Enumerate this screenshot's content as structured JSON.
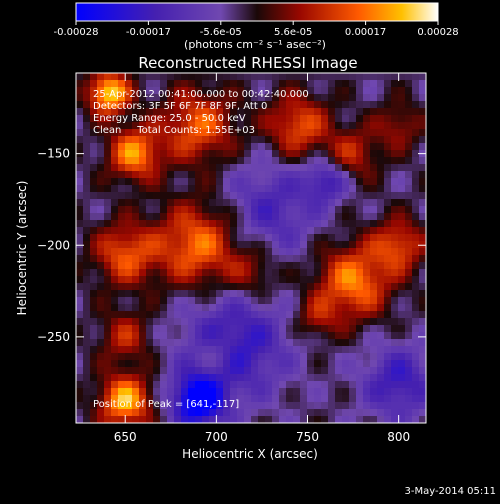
{
  "colorbar": {
    "ticks": [
      "-0.00028",
      "-0.00017",
      "-5.6e-05",
      "5.6e-05",
      "0.00017",
      "0.00028"
    ],
    "unit_label": "(photons cm⁻² s⁻¹ asec⁻²)",
    "range": [
      -0.00028,
      0.00028
    ],
    "colors": [
      "#0000ff",
      "#3c1aa8",
      "#6a3ea8",
      "#2a0c18",
      "#b01000",
      "#ff5a00",
      "#ffb400",
      "#ffffff"
    ]
  },
  "chart_data": {
    "type": "heatmap",
    "title": "Reconstructed RHESSI Image",
    "xlabel": "Heliocentric X (arcsec)",
    "ylabel": "Heliocentric Y (arcsec)",
    "xlim": [
      623,
      815
    ],
    "ylim": [
      -297,
      -106
    ],
    "x_ticks": [
      650,
      700,
      750,
      800
    ],
    "y_ticks": [
      -150,
      -200,
      -250
    ],
    "annotations": [
      "25-Apr-2012 00:41:00.000 to 00:42:40.000",
      "Detectors: 3F 5F 6F 7F 8F 9F, Att 0",
      "Energy Range: 25.0 - 50.0 keV",
      "Clean     Total Counts: 1.55E+03"
    ],
    "peak_text": "Position of Peak = [641,-117]",
    "hot_regions": [
      {
        "x": 641,
        "y": -117,
        "radius": 8,
        "value": 0.00028
      },
      {
        "x": 655,
        "y": -150,
        "radius": 10,
        "value": 0.00022
      },
      {
        "x": 690,
        "y": -135,
        "radius": 14,
        "value": 0.00018
      },
      {
        "x": 745,
        "y": -135,
        "radius": 12,
        "value": 0.00017
      },
      {
        "x": 775,
        "y": -150,
        "radius": 10,
        "value": 0.00012
      },
      {
        "x": 800,
        "y": -135,
        "radius": 9,
        "value": 0.0001
      },
      {
        "x": 690,
        "y": -200,
        "radius": 16,
        "value": 0.0002
      },
      {
        "x": 650,
        "y": -205,
        "radius": 12,
        "value": 0.00017
      },
      {
        "x": 720,
        "y": -215,
        "radius": 10,
        "value": 0.0001
      },
      {
        "x": 775,
        "y": -220,
        "radius": 14,
        "value": 0.00021
      },
      {
        "x": 800,
        "y": -200,
        "radius": 10,
        "value": 0.00016
      },
      {
        "x": 650,
        "y": -250,
        "radius": 10,
        "value": 0.00012
      },
      {
        "x": 700,
        "y": -260,
        "radius": 8,
        "value": 8e-05
      },
      {
        "x": 650,
        "y": -285,
        "radius": 10,
        "value": 0.00025
      },
      {
        "x": 755,
        "y": -240,
        "radius": 8,
        "value": 0.0001
      }
    ],
    "cold_regions": [
      {
        "x": 730,
        "y": -180,
        "radius": 18,
        "value": -0.00012
      },
      {
        "x": 710,
        "y": -255,
        "radius": 20,
        "value": -0.00017
      },
      {
        "x": 690,
        "y": -285,
        "radius": 10,
        "value": -0.00028
      },
      {
        "x": 800,
        "y": -275,
        "radius": 14,
        "value": -0.00015
      },
      {
        "x": 760,
        "y": -165,
        "radius": 8,
        "value": -0.00014
      }
    ]
  },
  "footer": {
    "date": "3-May-2014 05:11"
  }
}
